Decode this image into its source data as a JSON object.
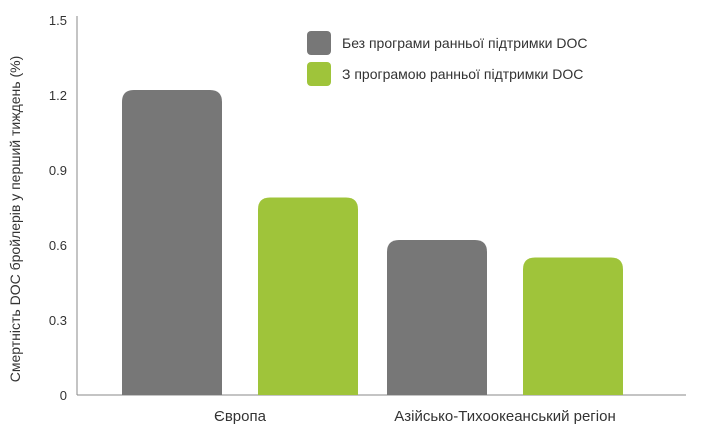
{
  "chart_data": {
    "type": "bar",
    "title": "",
    "xlabel": "",
    "ylabel": "Смертність DOC бройлерів у перший тиждень (%)",
    "ylim": [
      0,
      1.5
    ],
    "yticks": [
      "0",
      "0.3",
      "0.6",
      "0.9",
      "1.2",
      "1.5"
    ],
    "categories": [
      "Європа",
      "Азійсько-Тихоокеанський регіон"
    ],
    "series": [
      {
        "name": "Без програми ранньої підтримки DOC",
        "values": [
          1.22,
          0.62
        ],
        "color": "#777777"
      },
      {
        "name": "З програмою ранньої підтримки DOC",
        "values": [
          0.79,
          0.55
        ],
        "color": "#9fc43a"
      }
    ],
    "grid": false,
    "legend_position": "top-right"
  }
}
